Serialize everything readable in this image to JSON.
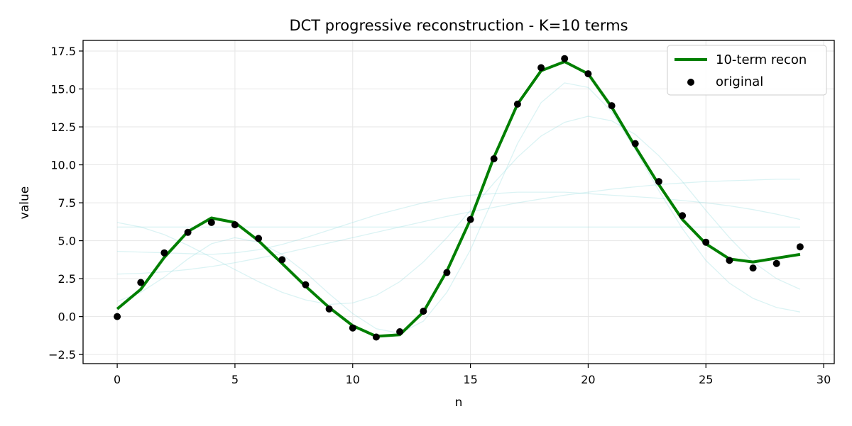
{
  "chart_data": {
    "type": "line",
    "title": "DCT progressive reconstruction - K=10 terms",
    "xlabel": "n",
    "ylabel": "value",
    "xlim": [
      -1.45,
      30.45
    ],
    "ylim": [
      -3.1,
      18.2
    ],
    "x_ticks": [
      0,
      5,
      10,
      15,
      20,
      25,
      30
    ],
    "y_ticks": [
      -2.5,
      0.0,
      2.5,
      5.0,
      7.5,
      10.0,
      12.5,
      15.0,
      17.5
    ],
    "x_tick_labels": [
      "0",
      "5",
      "10",
      "15",
      "20",
      "25",
      "30"
    ],
    "y_tick_labels": [
      "−2.5",
      "0.0",
      "2.5",
      "5.0",
      "7.5",
      "10.0",
      "12.5",
      "15.0",
      "17.5"
    ],
    "grid": true,
    "legend_position": "top-right",
    "series": [
      {
        "name": "10-term recon",
        "kind": "line",
        "color": "#007f00",
        "x": [
          0,
          1,
          2,
          3,
          4,
          5,
          6,
          7,
          8,
          9,
          10,
          11,
          12,
          13,
          14,
          15,
          16,
          17,
          18,
          19,
          20,
          21,
          22,
          23,
          24,
          25,
          26,
          27,
          28,
          29
        ],
        "y": [
          0.5,
          1.8,
          3.9,
          5.6,
          6.5,
          6.2,
          5.0,
          3.5,
          2.0,
          0.6,
          -0.6,
          -1.3,
          -1.2,
          0.3,
          3.0,
          6.4,
          10.5,
          14.0,
          16.2,
          16.8,
          16.0,
          13.8,
          11.2,
          8.7,
          6.4,
          4.8,
          3.8,
          3.6,
          3.85,
          4.1
        ]
      },
      {
        "name": "original",
        "kind": "scatter",
        "color": "#000000",
        "x": [
          0,
          1,
          2,
          3,
          4,
          5,
          6,
          7,
          8,
          9,
          10,
          11,
          12,
          13,
          14,
          15,
          16,
          17,
          18,
          19,
          20,
          21,
          22,
          23,
          24,
          25,
          26,
          27,
          28,
          29
        ],
        "y": [
          0.0,
          2.25,
          4.2,
          5.55,
          6.2,
          6.05,
          5.15,
          3.75,
          2.1,
          0.5,
          -0.75,
          -1.35,
          -1.0,
          0.35,
          2.9,
          6.4,
          10.4,
          14.0,
          16.4,
          17.0,
          16.0,
          13.9,
          11.4,
          8.9,
          6.65,
          4.9,
          3.7,
          3.2,
          3.5,
          4.6
        ]
      }
    ],
    "faint_partial_reconstructions": {
      "color": "#7fd3d8",
      "x": [
        0,
        1,
        2,
        3,
        4,
        5,
        6,
        7,
        8,
        9,
        10,
        11,
        12,
        13,
        14,
        15,
        16,
        17,
        18,
        19,
        20,
        21,
        22,
        23,
        24,
        25,
        26,
        27,
        28,
        29
      ],
      "curves": [
        [
          5.9,
          5.9,
          5.9,
          5.9,
          5.9,
          5.9,
          5.9,
          5.9,
          5.9,
          5.9,
          5.9,
          5.9,
          5.9,
          5.9,
          5.9,
          5.9,
          5.9,
          5.9,
          5.9,
          5.9,
          5.9,
          5.9,
          5.9,
          5.9,
          5.9,
          5.9,
          5.9,
          5.9,
          5.9,
          5.9
        ],
        [
          2.8,
          2.85,
          2.95,
          3.1,
          3.3,
          3.55,
          3.85,
          4.15,
          4.5,
          4.85,
          5.2,
          5.55,
          5.9,
          6.25,
          6.6,
          6.9,
          7.2,
          7.5,
          7.75,
          8.0,
          8.2,
          8.4,
          8.55,
          8.7,
          8.8,
          8.9,
          8.95,
          9.0,
          9.05,
          9.05
        ],
        [
          4.3,
          4.25,
          4.2,
          4.15,
          4.1,
          4.2,
          4.4,
          4.75,
          5.2,
          5.7,
          6.2,
          6.7,
          7.1,
          7.5,
          7.8,
          8.0,
          8.1,
          8.2,
          8.2,
          8.2,
          8.1,
          8.0,
          7.9,
          7.8,
          7.65,
          7.5,
          7.3,
          7.05,
          6.75,
          6.4
        ],
        [
          6.2,
          5.9,
          5.4,
          4.7,
          3.9,
          3.1,
          2.3,
          1.6,
          1.1,
          0.8,
          0.9,
          1.4,
          2.3,
          3.6,
          5.2,
          7.0,
          8.8,
          10.5,
          11.9,
          12.8,
          13.2,
          12.9,
          12.0,
          10.6,
          8.9,
          7.0,
          5.2,
          3.6,
          2.5,
          1.8
        ],
        [
          1.0,
          1.6,
          2.6,
          3.8,
          4.8,
          5.2,
          4.9,
          4.1,
          2.9,
          1.5,
          0.2,
          -0.8,
          -1.1,
          -0.3,
          1.6,
          4.4,
          7.9,
          11.4,
          14.1,
          15.4,
          15.1,
          13.5,
          11.0,
          8.3,
          5.8,
          3.7,
          2.2,
          1.2,
          0.6,
          0.3
        ]
      ]
    }
  }
}
